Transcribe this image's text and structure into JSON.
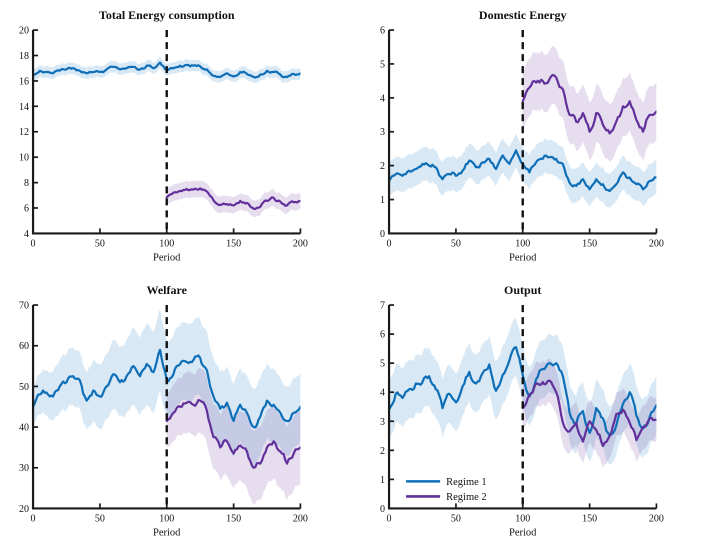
{
  "figure": {
    "background": "#ffffff"
  },
  "colors": {
    "regime1": "#0e6fb8",
    "regime2": "#61309b",
    "band_opacity": 0.16,
    "axis": "#1a1a1a",
    "switch_line": "#111111"
  },
  "legend": {
    "items": [
      "Regime 1",
      "Regime 2"
    ]
  },
  "chart_data": [
    {
      "type": "line",
      "title": "Total Energy consumption",
      "xlabel": "Period",
      "xlim": [
        0,
        200
      ],
      "ylim": [
        4,
        20
      ],
      "xticks": [
        0,
        50,
        100,
        150,
        200
      ],
      "yticks": [
        4,
        6,
        8,
        10,
        12,
        14,
        16,
        18,
        20
      ],
      "regime_switch_x": 100,
      "show_legend": false,
      "series": [
        {
          "name": "Regime 1",
          "color_key": "regime1",
          "x_start": 0,
          "x_step": 5,
          "seed": 1,
          "roughness": 0.12,
          "band": 0.45,
          "values": [
            16.5,
            16.8,
            16.7,
            16.6,
            16.8,
            16.9,
            17.0,
            16.8,
            16.6,
            16.7,
            16.7,
            16.9,
            17.1,
            16.9,
            17.0,
            17.1,
            16.9,
            17.2,
            17.0,
            17.45,
            16.85,
            17.0,
            17.2,
            17.25,
            17.2,
            17.15,
            16.9,
            16.4,
            16.3,
            16.6,
            16.35,
            16.7,
            16.55,
            16.3,
            16.5,
            16.8,
            16.7,
            16.5,
            16.3,
            16.55,
            16.6
          ]
        },
        {
          "name": "Regime 2",
          "color_key": "regime2",
          "x_start": 100,
          "x_step": 5,
          "seed": 2,
          "roughness": 0.16,
          "band": 0.65,
          "values": [
            6.85,
            7.2,
            7.35,
            7.5,
            7.45,
            7.55,
            7.3,
            6.6,
            6.25,
            6.3,
            6.2,
            6.55,
            6.4,
            5.95,
            6.1,
            6.55,
            6.8,
            6.5,
            6.2,
            6.45,
            6.55
          ]
        }
      ]
    },
    {
      "type": "line",
      "title": "Domestic Energy",
      "xlabel": "Period",
      "xlim": [
        0,
        200
      ],
      "ylim": [
        0,
        6
      ],
      "xticks": [
        0,
        50,
        100,
        150,
        200
      ],
      "yticks": [
        0,
        1,
        2,
        3,
        4,
        5,
        6
      ],
      "regime_switch_x": 100,
      "show_legend": false,
      "series": [
        {
          "name": "Regime 1",
          "color_key": "regime1",
          "x_start": 0,
          "x_step": 5,
          "seed": 3,
          "roughness": 0.08,
          "band": 0.5,
          "values": [
            1.55,
            1.75,
            1.7,
            1.85,
            1.9,
            2.05,
            2.0,
            1.95,
            1.6,
            1.75,
            1.7,
            1.85,
            2.15,
            1.95,
            2.1,
            2.2,
            1.9,
            2.3,
            2.05,
            2.45,
            2.05,
            1.8,
            2.1,
            2.2,
            2.25,
            2.2,
            2.05,
            1.5,
            1.4,
            1.6,
            1.3,
            1.6,
            1.45,
            1.25,
            1.45,
            1.8,
            1.65,
            1.45,
            1.3,
            1.55,
            1.65
          ]
        },
        {
          "name": "Regime 2",
          "color_key": "regime2",
          "x_start": 100,
          "x_step": 5,
          "seed": 4,
          "roughness": 0.11,
          "band": 0.85,
          "values": [
            3.9,
            4.3,
            4.45,
            4.5,
            4.55,
            4.6,
            4.25,
            3.5,
            3.3,
            3.55,
            3.0,
            3.55,
            3.2,
            2.95,
            3.3,
            3.75,
            3.9,
            3.35,
            3.0,
            3.5,
            3.6
          ]
        }
      ]
    },
    {
      "type": "line",
      "title": "Welfare",
      "xlabel": "Period",
      "xlim": [
        0,
        200
      ],
      "ylim": [
        20,
        70
      ],
      "xticks": [
        0,
        50,
        100,
        150,
        200
      ],
      "yticks": [
        20,
        30,
        40,
        50,
        60,
        70
      ],
      "regime_switch_x": 100,
      "show_legend": false,
      "series": [
        {
          "name": "Regime 1",
          "color_key": "regime1",
          "x_start": 0,
          "x_step": 5,
          "seed": 5,
          "roughness": 0.9,
          "band": [
            4.5,
            5,
            5.5,
            6,
            6.5,
            7,
            7,
            7,
            7,
            7.5,
            8,
            8,
            8.5,
            8.5,
            9,
            9.5,
            9.5,
            10,
            10,
            10,
            9.5,
            9.5,
            9.5,
            9.5,
            9.5,
            9.5,
            9.5,
            9.5,
            9,
            9,
            9,
            9,
            9,
            9.5,
            9.5,
            9,
            9,
            8.5,
            8.5,
            8.5,
            8.5
          ],
          "values": [
            45,
            48,
            48.5,
            47.5,
            50,
            51,
            52.5,
            51.5,
            46.5,
            49,
            47.5,
            50,
            53,
            51,
            52.5,
            55,
            52.5,
            55.5,
            53.5,
            59,
            51.5,
            53,
            55.5,
            56,
            56.5,
            57,
            54,
            47.5,
            44.5,
            46,
            41.5,
            45.5,
            43.5,
            40,
            42.5,
            46.5,
            45.5,
            43.5,
            41.5,
            43.5,
            45
          ]
        },
        {
          "name": "Regime 2",
          "color_key": "regime2",
          "x_start": 100,
          "x_step": 5,
          "seed": 6,
          "roughness": 0.9,
          "band": [
            6.5,
            7,
            7,
            7.5,
            7.5,
            8,
            8,
            8,
            8,
            8.5,
            8.5,
            8.5,
            9,
            9,
            9,
            9,
            9,
            9,
            9,
            9,
            9
          ],
          "values": [
            41.5,
            43.5,
            45,
            46,
            45.5,
            46.5,
            44,
            37.5,
            35,
            36.5,
            33.5,
            35.5,
            34,
            30,
            31,
            35,
            36.5,
            34,
            31,
            33.5,
            35
          ]
        }
      ]
    },
    {
      "type": "line",
      "title": "Output",
      "xlabel": "Period",
      "xlim": [
        0,
        200
      ],
      "ylim": [
        0,
        7
      ],
      "xticks": [
        0,
        50,
        100,
        150,
        200
      ],
      "yticks": [
        0,
        1,
        2,
        3,
        4,
        5,
        6,
        7
      ],
      "regime_switch_x": 100,
      "show_legend": true,
      "series": [
        {
          "name": "Regime 1",
          "color_key": "regime1",
          "x_start": 0,
          "x_step": 5,
          "seed": 7,
          "roughness": 0.13,
          "band": 1.0,
          "values": [
            3.4,
            3.95,
            3.8,
            4.1,
            4.3,
            4.35,
            4.55,
            4.1,
            3.45,
            3.95,
            3.65,
            4.2,
            4.7,
            4.3,
            4.65,
            4.95,
            4.05,
            4.6,
            5.1,
            5.55,
            4.6,
            3.85,
            4.45,
            4.8,
            5.0,
            5.0,
            4.55,
            3.3,
            2.9,
            3.35,
            2.6,
            3.45,
            3.1,
            2.5,
            2.85,
            3.6,
            4.0,
            3.2,
            2.75,
            3.15,
            3.55
          ]
        },
        {
          "name": "Regime 2",
          "color_key": "regime2",
          "x_start": 100,
          "x_step": 5,
          "seed": 8,
          "roughness": 0.11,
          "band": 0.75,
          "values": [
            3.45,
            3.9,
            4.3,
            4.35,
            4.4,
            4.0,
            2.95,
            2.65,
            2.95,
            2.3,
            3.0,
            2.7,
            2.15,
            2.5,
            3.25,
            3.4,
            2.95,
            2.35,
            2.8,
            3.1,
            3.05
          ]
        }
      ]
    }
  ]
}
